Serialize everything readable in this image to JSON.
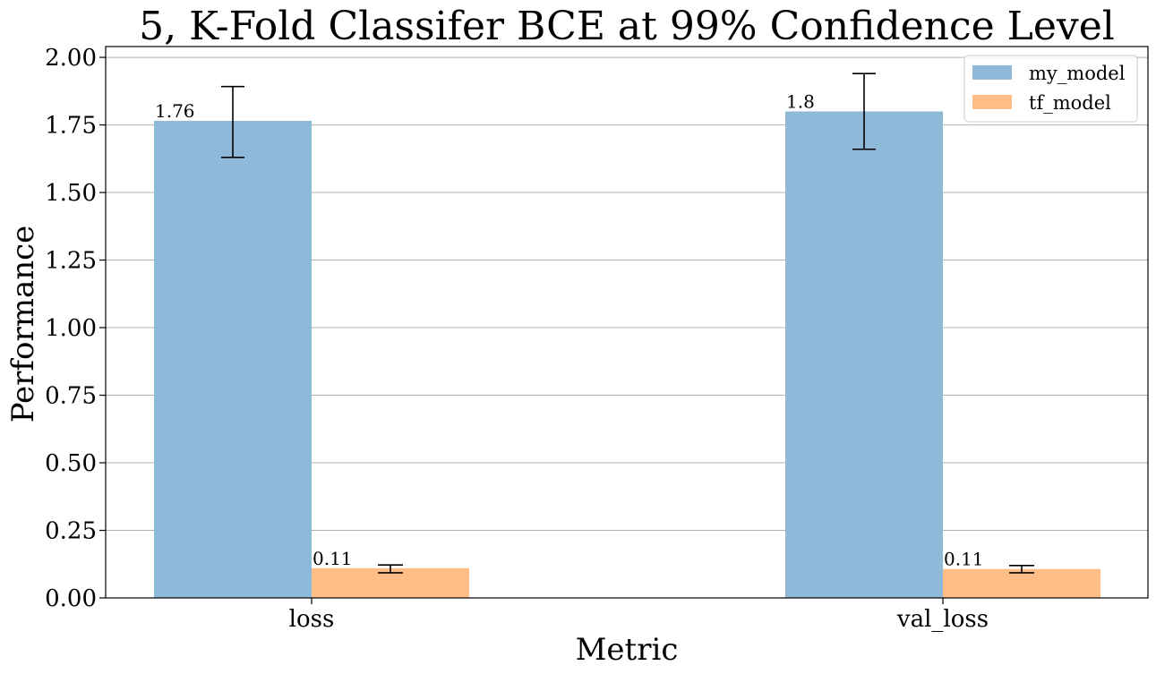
{
  "chart_data": {
    "type": "bar",
    "title": "5, K-Fold Classifer BCE at 99% Confidence Level",
    "xlabel": "Metric",
    "ylabel": "Performance",
    "categories": [
      "loss",
      "val_loss"
    ],
    "series": [
      {
        "name": "my_model",
        "color": "#8fb9d9",
        "values": [
          1.765,
          1.8
        ],
        "err_low": [
          1.63,
          1.66
        ],
        "err_high": [
          1.892,
          1.94
        ],
        "value_labels": [
          "1.76",
          "1.8"
        ]
      },
      {
        "name": "tf_model",
        "color": "#ffbe86",
        "values": [
          0.11,
          0.107
        ],
        "err_low": [
          0.093,
          0.093
        ],
        "err_high": [
          0.122,
          0.12
        ],
        "value_labels": [
          "0.11",
          "0.11"
        ]
      }
    ],
    "ylim": [
      0,
      2.04
    ],
    "yticks": [
      "0.00",
      "0.25",
      "0.50",
      "0.75",
      "1.00",
      "1.25",
      "1.50",
      "1.75",
      "2.00"
    ],
    "grid": "y",
    "legend_position": "top-right"
  }
}
